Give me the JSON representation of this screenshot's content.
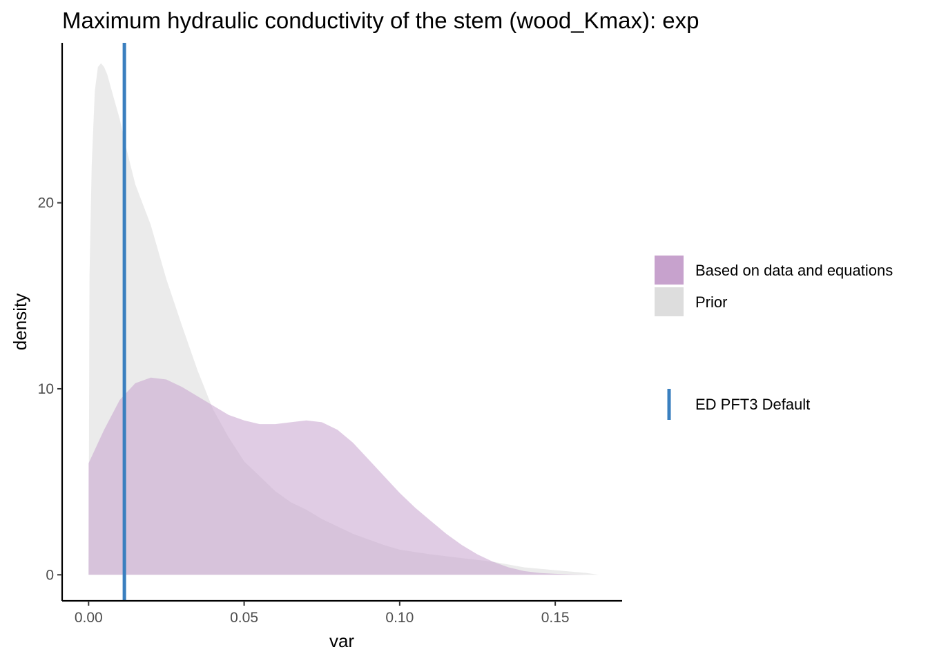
{
  "chart_data": {
    "type": "area",
    "title": "Maximum hydraulic conductivity of the stem (wood_Kmax): exp",
    "xlabel": "var",
    "ylabel": "density",
    "xlim": [
      -0.0085,
      0.1715
    ],
    "ylim": [
      -1.4,
      28.6
    ],
    "x_ticks": [
      0.0,
      0.05,
      0.1,
      0.15
    ],
    "x_tick_labels": [
      "0.00",
      "0.05",
      "0.10",
      "0.15"
    ],
    "y_ticks": [
      0,
      10,
      20
    ],
    "y_tick_labels": [
      "0",
      "10",
      "20"
    ],
    "grid": false,
    "legend_position": "right",
    "series": [
      {
        "name": "Prior",
        "color": "#dddddd",
        "opacity": 0.6,
        "x": [
          0.0,
          0.0003,
          0.001,
          0.002,
          0.003,
          0.004,
          0.005,
          0.006,
          0.008,
          0.01,
          0.012,
          0.015,
          0.02,
          0.025,
          0.03,
          0.035,
          0.04,
          0.045,
          0.05,
          0.055,
          0.06,
          0.065,
          0.07,
          0.075,
          0.08,
          0.085,
          0.09,
          0.095,
          0.1,
          0.11,
          0.12,
          0.13,
          0.14,
          0.15,
          0.16,
          0.164
        ],
        "y": [
          0,
          16,
          22,
          26,
          27.3,
          27.5,
          27.3,
          26.9,
          25.7,
          24.5,
          23.0,
          21.0,
          18.8,
          15.9,
          13.4,
          11.0,
          8.9,
          7.4,
          6.1,
          5.3,
          4.5,
          3.9,
          3.5,
          3.0,
          2.6,
          2.2,
          1.9,
          1.6,
          1.35,
          1.1,
          0.9,
          0.7,
          0.4,
          0.25,
          0.1,
          0.0
        ]
      },
      {
        "name": "Based on data and equations",
        "color": "#c7a2cd",
        "opacity": 0.55,
        "x": [
          0.0,
          0.005,
          0.01,
          0.015,
          0.02,
          0.025,
          0.03,
          0.035,
          0.04,
          0.045,
          0.05,
          0.055,
          0.06,
          0.065,
          0.07,
          0.075,
          0.08,
          0.085,
          0.09,
          0.095,
          0.1,
          0.105,
          0.11,
          0.115,
          0.12,
          0.125,
          0.13,
          0.135,
          0.14,
          0.145,
          0.15,
          0.155,
          0.16
        ],
        "y": [
          6.0,
          7.8,
          9.4,
          10.3,
          10.6,
          10.5,
          10.1,
          9.6,
          9.1,
          8.6,
          8.3,
          8.1,
          8.1,
          8.2,
          8.3,
          8.2,
          7.8,
          7.1,
          6.2,
          5.3,
          4.4,
          3.6,
          2.9,
          2.2,
          1.6,
          1.1,
          0.7,
          0.4,
          0.2,
          0.1,
          0.05,
          0.02,
          0.0
        ]
      }
    ],
    "reference_lines": [
      {
        "name": "ED PFT3 Default",
        "x": 0.0115,
        "color": "#3a7fbf"
      }
    ]
  }
}
